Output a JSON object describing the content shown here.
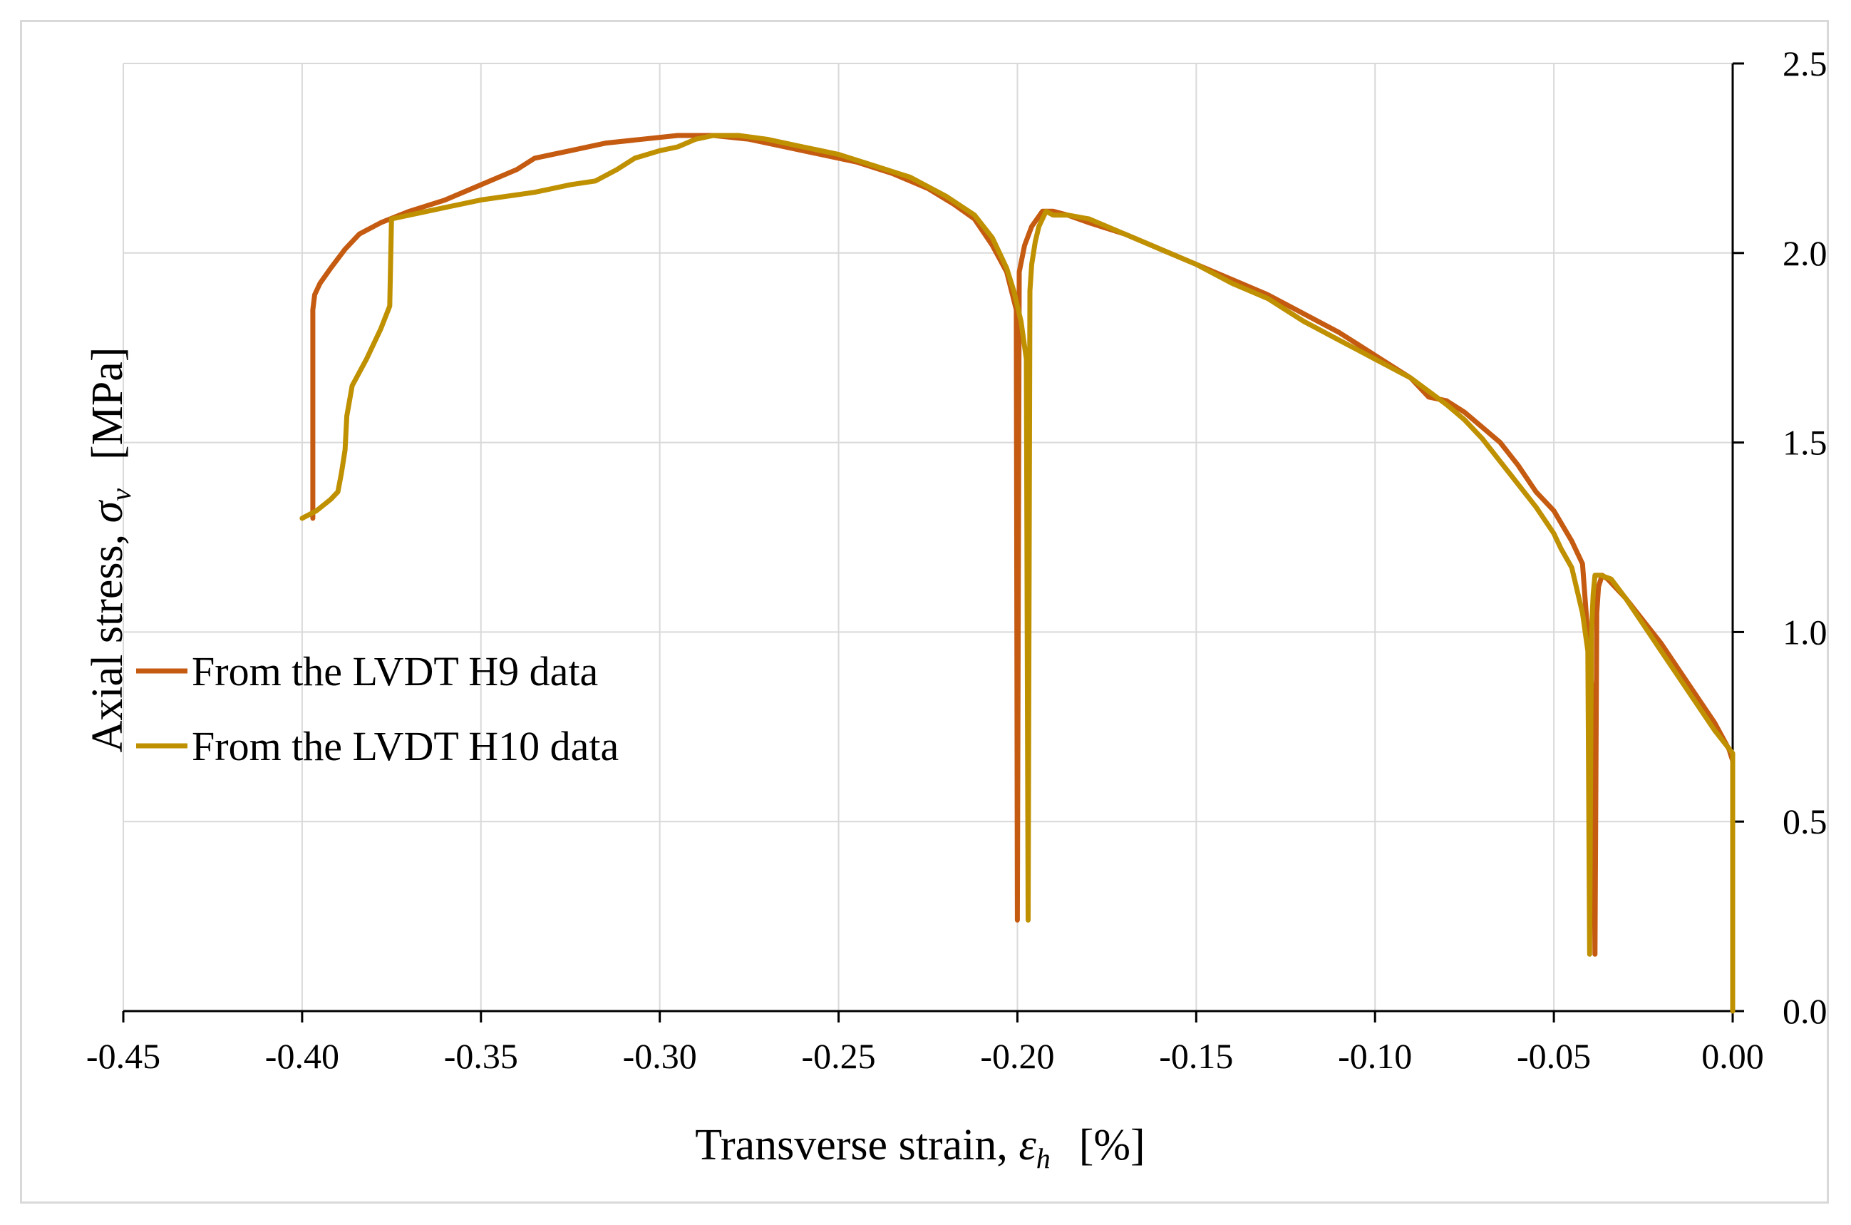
{
  "chart_data": {
    "type": "line",
    "title": "",
    "xlabel": "Transverse strain, ε_h [%]",
    "ylabel": "Axial stress, σ_v [MPa]",
    "xlabel_parts": {
      "prefix": "Transverse strain, ",
      "symbol": "ε",
      "subscript": "h",
      "unit": "[%]"
    },
    "ylabel_parts": {
      "prefix": "Axial stress, ",
      "symbol": "σ",
      "subscript": "v",
      "unit": "[MPa]"
    },
    "xlim": [
      -0.45,
      0.0
    ],
    "ylim": [
      0.0,
      2.5
    ],
    "x_ticks": [
      -0.45,
      -0.4,
      -0.35,
      -0.3,
      -0.25,
      -0.2,
      -0.15,
      -0.1,
      -0.05,
      0.0
    ],
    "x_tick_labels": [
      "-0.45",
      "-0.40",
      "-0.35",
      "-0.30",
      "-0.25",
      "-0.20",
      "-0.15",
      "-0.10",
      "-0.05",
      "0.00"
    ],
    "y_ticks": [
      0.0,
      0.5,
      1.0,
      1.5,
      2.0,
      2.5
    ],
    "y_tick_labels": [
      "0.0",
      "0.5",
      "1.0",
      "1.5",
      "2.0",
      "2.5"
    ],
    "y_axis_side": "right",
    "grid": true,
    "legend_position": "left-middle",
    "series": [
      {
        "name": "From the LVDT H9 data",
        "color": "#c55a11",
        "points": [
          [
            0.0,
            0.66
          ],
          [
            -0.001,
            0.69
          ],
          [
            -0.005,
            0.76
          ],
          [
            -0.01,
            0.83
          ],
          [
            -0.015,
            0.9
          ],
          [
            -0.02,
            0.97
          ],
          [
            -0.025,
            1.03
          ],
          [
            -0.03,
            1.09
          ],
          [
            -0.035,
            1.14
          ],
          [
            -0.0365,
            1.15
          ],
          [
            -0.0375,
            1.12
          ],
          [
            -0.038,
            1.05
          ],
          [
            -0.0385,
            0.15
          ],
          [
            -0.039,
            0.8
          ],
          [
            -0.042,
            1.18
          ],
          [
            -0.045,
            1.24
          ],
          [
            -0.05,
            1.32
          ],
          [
            -0.055,
            1.37
          ],
          [
            -0.06,
            1.44
          ],
          [
            -0.065,
            1.5
          ],
          [
            -0.07,
            1.54
          ],
          [
            -0.075,
            1.58
          ],
          [
            -0.08,
            1.61
          ],
          [
            -0.085,
            1.62
          ],
          [
            -0.09,
            1.67
          ],
          [
            -0.095,
            1.7
          ],
          [
            -0.1,
            1.73
          ],
          [
            -0.11,
            1.79
          ],
          [
            -0.12,
            1.84
          ],
          [
            -0.13,
            1.89
          ],
          [
            -0.14,
            1.93
          ],
          [
            -0.15,
            1.97
          ],
          [
            -0.16,
            2.01
          ],
          [
            -0.17,
            2.05
          ],
          [
            -0.18,
            2.08
          ],
          [
            -0.186,
            2.1
          ],
          [
            -0.19,
            2.11
          ],
          [
            -0.193,
            2.11
          ],
          [
            -0.196,
            2.07
          ],
          [
            -0.198,
            2.02
          ],
          [
            -0.1995,
            1.95
          ],
          [
            -0.2,
            0.24
          ],
          [
            -0.2003,
            1.85
          ],
          [
            -0.203,
            1.95
          ],
          [
            -0.207,
            2.02
          ],
          [
            -0.212,
            2.09
          ],
          [
            -0.218,
            2.13
          ],
          [
            -0.225,
            2.17
          ],
          [
            -0.235,
            2.21
          ],
          [
            -0.245,
            2.24
          ],
          [
            -0.255,
            2.26
          ],
          [
            -0.265,
            2.28
          ],
          [
            -0.275,
            2.3
          ],
          [
            -0.285,
            2.31
          ],
          [
            -0.295,
            2.31
          ],
          [
            -0.305,
            2.3
          ],
          [
            -0.315,
            2.29
          ],
          [
            -0.325,
            2.27
          ],
          [
            -0.335,
            2.25
          ],
          [
            -0.34,
            2.22
          ],
          [
            -0.35,
            2.18
          ],
          [
            -0.36,
            2.14
          ],
          [
            -0.37,
            2.11
          ],
          [
            -0.378,
            2.08
          ],
          [
            -0.384,
            2.05
          ],
          [
            -0.388,
            2.01
          ],
          [
            -0.392,
            1.96
          ],
          [
            -0.395,
            1.92
          ],
          [
            -0.3965,
            1.89
          ],
          [
            -0.397,
            1.85
          ],
          [
            -0.397,
            1.3
          ]
        ]
      },
      {
        "name": "From the LVDT H10 data",
        "color": "#bf9000",
        "points": [
          [
            0.0,
            0.0
          ],
          [
            0.0,
            0.68
          ],
          [
            -0.005,
            0.74
          ],
          [
            -0.01,
            0.81
          ],
          [
            -0.015,
            0.88
          ],
          [
            -0.02,
            0.95
          ],
          [
            -0.025,
            1.02
          ],
          [
            -0.03,
            1.09
          ],
          [
            -0.034,
            1.14
          ],
          [
            -0.037,
            1.15
          ],
          [
            -0.0385,
            1.15
          ],
          [
            -0.039,
            1.1
          ],
          [
            -0.0395,
            1.0
          ],
          [
            -0.04,
            0.15
          ],
          [
            -0.0405,
            0.95
          ],
          [
            -0.042,
            1.05
          ],
          [
            -0.045,
            1.17
          ],
          [
            -0.048,
            1.22
          ],
          [
            -0.05,
            1.26
          ],
          [
            -0.055,
            1.33
          ],
          [
            -0.06,
            1.39
          ],
          [
            -0.065,
            1.45
          ],
          [
            -0.07,
            1.51
          ],
          [
            -0.075,
            1.56
          ],
          [
            -0.08,
            1.6
          ],
          [
            -0.09,
            1.67
          ],
          [
            -0.1,
            1.72
          ],
          [
            -0.11,
            1.77
          ],
          [
            -0.12,
            1.82
          ],
          [
            -0.13,
            1.88
          ],
          [
            -0.14,
            1.92
          ],
          [
            -0.15,
            1.97
          ],
          [
            -0.16,
            2.01
          ],
          [
            -0.17,
            2.05
          ],
          [
            -0.18,
            2.09
          ],
          [
            -0.186,
            2.1
          ],
          [
            -0.19,
            2.1
          ],
          [
            -0.192,
            2.11
          ],
          [
            -0.194,
            2.07
          ],
          [
            -0.195,
            2.03
          ],
          [
            -0.196,
            1.97
          ],
          [
            -0.1965,
            1.9
          ],
          [
            -0.197,
            0.24
          ],
          [
            -0.1975,
            1.72
          ],
          [
            -0.199,
            1.82
          ],
          [
            -0.201,
            1.9
          ],
          [
            -0.203,
            1.96
          ],
          [
            -0.207,
            2.04
          ],
          [
            -0.212,
            2.1
          ],
          [
            -0.22,
            2.15
          ],
          [
            -0.23,
            2.2
          ],
          [
            -0.24,
            2.23
          ],
          [
            -0.25,
            2.26
          ],
          [
            -0.26,
            2.28
          ],
          [
            -0.27,
            2.3
          ],
          [
            -0.278,
            2.31
          ],
          [
            -0.285,
            2.31
          ],
          [
            -0.29,
            2.3
          ],
          [
            -0.295,
            2.28
          ],
          [
            -0.3,
            2.27
          ],
          [
            -0.307,
            2.25
          ],
          [
            -0.312,
            2.22
          ],
          [
            -0.318,
            2.19
          ],
          [
            -0.325,
            2.18
          ],
          [
            -0.335,
            2.16
          ],
          [
            -0.35,
            2.14
          ],
          [
            -0.365,
            2.11
          ],
          [
            -0.375,
            2.09
          ],
          [
            -0.3755,
            1.86
          ],
          [
            -0.378,
            1.8
          ],
          [
            -0.382,
            1.72
          ],
          [
            -0.386,
            1.65
          ],
          [
            -0.3875,
            1.57
          ],
          [
            -0.388,
            1.48
          ],
          [
            -0.389,
            1.42
          ],
          [
            -0.39,
            1.37
          ],
          [
            -0.392,
            1.35
          ],
          [
            -0.396,
            1.32
          ],
          [
            -0.4,
            1.3
          ]
        ]
      }
    ]
  }
}
